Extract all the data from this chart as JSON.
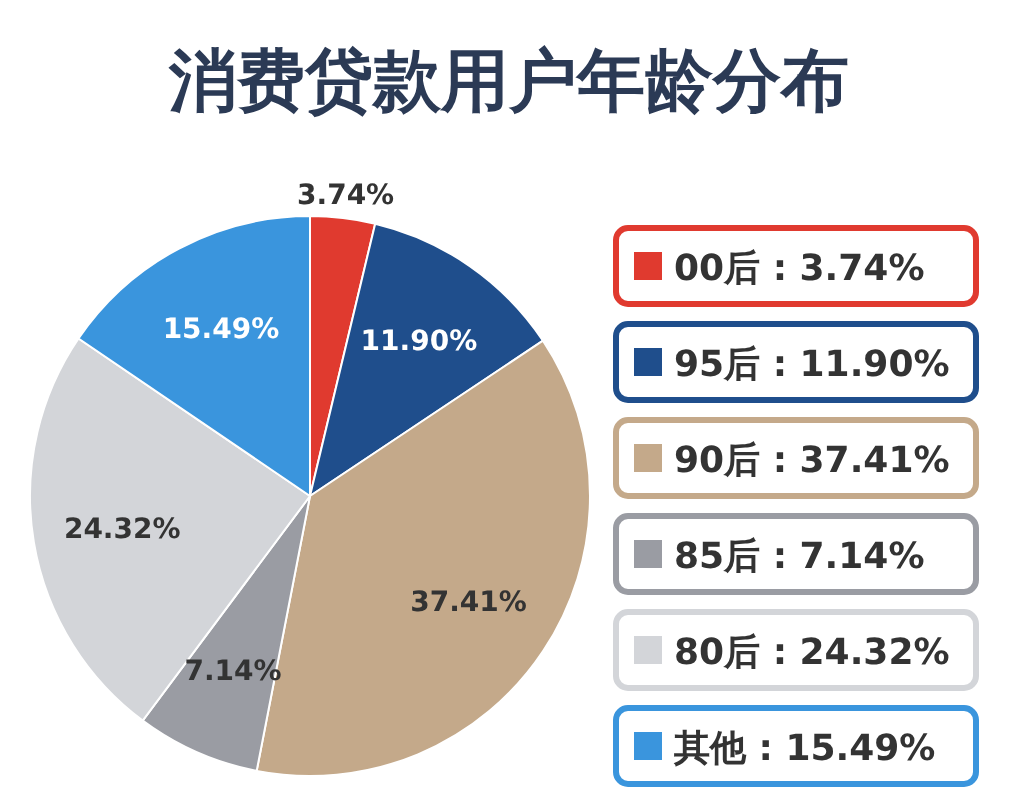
{
  "chart_data": {
    "type": "pie",
    "title": "消费贷款用户年龄分布",
    "categories": [
      "00后",
      "95后",
      "90后",
      "85后",
      "80后",
      "其他"
    ],
    "values": [
      3.74,
      11.9,
      37.41,
      7.14,
      24.32,
      15.49
    ],
    "value_labels": [
      "3.74%",
      "11.90%",
      "37.41%",
      "7.14%",
      "24.32%",
      "15.49%"
    ],
    "colors": [
      "#e03a2f",
      "#1f4e8c",
      "#c4a98a",
      "#9a9ca3",
      "#d3d5d9",
      "#3a95dd"
    ],
    "legend": "right"
  }
}
